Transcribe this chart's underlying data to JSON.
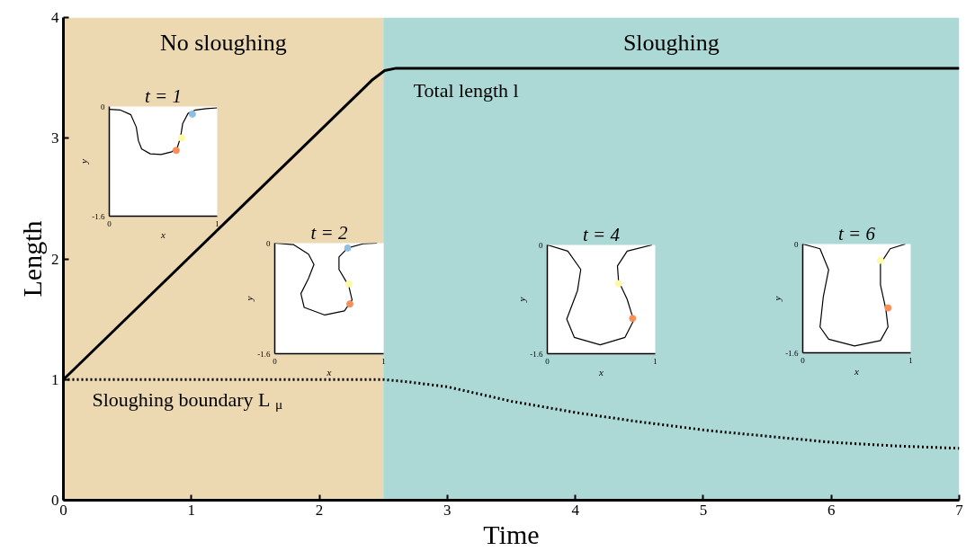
{
  "chart_data": [
    {
      "type": "line",
      "xlabel": "Time",
      "ylabel": "Length",
      "xlim": [
        0,
        7
      ],
      "ylim": [
        0,
        4
      ],
      "xticks": [
        0,
        1,
        2,
        3,
        4,
        5,
        6,
        7
      ],
      "yticks": [
        0,
        1,
        2,
        3,
        4
      ],
      "series": [
        {
          "name": "Total length l",
          "color": "#000000",
          "line_style": "solid",
          "x": [
            0,
            2.41,
            2.51,
            2.6,
            2.8,
            7
          ],
          "values": [
            1,
            3.48,
            3.56,
            3.58,
            3.58,
            3.58
          ]
        },
        {
          "name": "Sloughing boundary L$_{μ}$",
          "color": "#000000",
          "line_style": "dotted",
          "x": [
            0,
            2.5,
            2.7,
            3.0,
            3.5,
            4.04,
            4.5,
            5.02,
            5.5,
            6.0,
            6.5,
            7
          ],
          "values": [
            1,
            1,
            0.98,
            0.94,
            0.82,
            0.72,
            0.65,
            0.58,
            0.53,
            0.48,
            0.45,
            0.43
          ]
        }
      ],
      "bands": [
        {
          "axis": "x",
          "from": 0,
          "to": 2.5,
          "label": "No sloughing",
          "color": "#ecd9b2"
        },
        {
          "axis": "x",
          "from": 2.5,
          "to": 7,
          "label": "Sloughing",
          "color": "#acd9d6"
        }
      ]
    },
    {
      "type": "line",
      "title": "t = 1",
      "xlabel": "x",
      "ylabel": "y",
      "xlim": [
        0,
        1
      ],
      "ylim": [
        -1.6,
        0
      ],
      "xticks": [
        0,
        1
      ],
      "yticks": [
        -1.6,
        0
      ],
      "series": [
        {
          "color": "#000000",
          "x": [
            0,
            0.1,
            0.2,
            0.25,
            0.27,
            0.3,
            0.38,
            0.48,
            0.58,
            0.63,
            0.66,
            0.68,
            0.73,
            0.8,
            0.9,
            1
          ],
          "values": [
            -0.04,
            -0.05,
            -0.12,
            -0.3,
            -0.5,
            -0.62,
            -0.69,
            -0.7,
            -0.66,
            -0.6,
            -0.45,
            -0.25,
            -0.1,
            -0.05,
            -0.03,
            -0.02
          ]
        },
        {
          "type": "scatter",
          "color": "#8fbfe0",
          "x": [
            0.77
          ],
          "values": [
            -0.11
          ]
        },
        {
          "type": "scatter",
          "color": "#fcf9a8",
          "x": [
            0.67
          ],
          "values": [
            -0.46
          ]
        },
        {
          "type": "scatter",
          "color": "#fc8d59",
          "x": [
            0.62
          ],
          "values": [
            -0.64
          ]
        }
      ]
    },
    {
      "type": "line",
      "title": "t = 2",
      "xlabel": "x",
      "ylabel": "y",
      "xlim": [
        0,
        1
      ],
      "ylim": [
        -1.6,
        0
      ],
      "xticks": [
        0,
        1
      ],
      "yticks": [
        -1.6,
        0
      ],
      "series": [
        {
          "color": "#000000",
          "x": [
            0,
            0.17,
            0.31,
            0.36,
            0.31,
            0.24,
            0.27,
            0.46,
            0.64,
            0.71,
            0.68,
            0.59,
            0.59,
            0.67,
            0.81,
            0.94
          ],
          "values": [
            0,
            -0.02,
            -0.16,
            -0.31,
            -0.51,
            -0.73,
            -0.93,
            -1.04,
            -0.98,
            -0.82,
            -0.62,
            -0.38,
            -0.2,
            -0.07,
            -0.01,
            0
          ]
        },
        {
          "type": "scatter",
          "color": "#8fbfe0",
          "x": [
            0.67
          ],
          "values": [
            -0.07
          ]
        },
        {
          "type": "scatter",
          "color": "#fcf9a8",
          "x": [
            0.68
          ],
          "values": [
            -0.59
          ]
        },
        {
          "type": "scatter",
          "color": "#fc8d59",
          "x": [
            0.69
          ],
          "values": [
            -0.88
          ]
        }
      ]
    },
    {
      "type": "line",
      "title": "t = 4",
      "xlabel": "x",
      "ylabel": "y",
      "xlim": [
        0,
        1
      ],
      "ylim": [
        -1.6,
        0
      ],
      "xticks": [
        0,
        1
      ],
      "yticks": [
        -1.6,
        0
      ],
      "series": [
        {
          "color": "#000000",
          "x": [
            0,
            0.19,
            0.31,
            0.28,
            0.18,
            0.25,
            0.49,
            0.72,
            0.8,
            0.74,
            0.66,
            0.65,
            0.74,
            0.97
          ],
          "values": [
            0,
            -0.09,
            -0.36,
            -0.67,
            -1.09,
            -1.36,
            -1.47,
            -1.36,
            -1.11,
            -0.8,
            -0.53,
            -0.31,
            -0.09,
            0
          ]
        },
        {
          "type": "scatter",
          "color": "#fcf9a8",
          "x": [
            0.66
          ],
          "values": [
            -0.57
          ]
        },
        {
          "type": "scatter",
          "color": "#fc8d59",
          "x": [
            0.79
          ],
          "values": [
            -1.08
          ]
        }
      ]
    },
    {
      "type": "line",
      "title": "t = 6",
      "xlabel": "x",
      "ylabel": "y",
      "xlim": [
        0,
        1
      ],
      "ylim": [
        -1.6,
        0
      ],
      "xticks": [
        0,
        1
      ],
      "yticks": [
        -1.6,
        0
      ],
      "series": [
        {
          "color": "#000000",
          "x": [
            0,
            0.16,
            0.24,
            0.19,
            0.16,
            0.24,
            0.48,
            0.72,
            0.79,
            0.77,
            0.72,
            0.72,
            0.81,
            0.95
          ],
          "values": [
            0,
            -0.07,
            -0.38,
            -0.78,
            -1.22,
            -1.4,
            -1.5,
            -1.42,
            -1.22,
            -0.96,
            -0.6,
            -0.29,
            -0.07,
            0
          ]
        },
        {
          "type": "scatter",
          "color": "#fcf9a8",
          "x": [
            0.72
          ],
          "values": [
            -0.24
          ]
        },
        {
          "type": "scatter",
          "color": "#fc8d59",
          "x": [
            0.79
          ],
          "values": [
            -0.94
          ]
        }
      ]
    }
  ]
}
